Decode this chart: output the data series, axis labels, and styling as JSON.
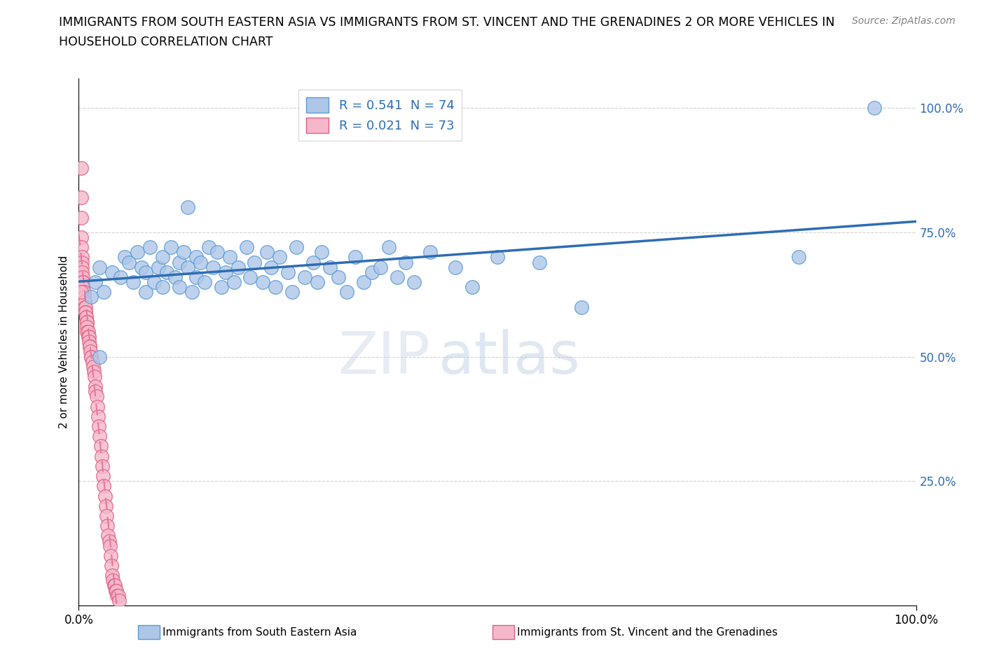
{
  "title_line1": "IMMIGRANTS FROM SOUTH EASTERN ASIA VS IMMIGRANTS FROM ST. VINCENT AND THE GRENADINES 2 OR MORE VEHICLES IN",
  "title_line2": "HOUSEHOLD CORRELATION CHART",
  "source": "Source: ZipAtlas.com",
  "ylabel": "2 or more Vehicles in Household",
  "blue_R": 0.541,
  "blue_N": 74,
  "pink_R": 0.021,
  "pink_N": 73,
  "blue_color": "#aec6e8",
  "blue_edge": "#5b9bd5",
  "pink_color": "#f5b8cb",
  "pink_edge": "#e06080",
  "trend_blue": "#2e6db4",
  "trend_pink": "#e87898",
  "legend_text_color": "#2e6db4",
  "tick_color": "#2e6db4",
  "blue_x": [
    1.5,
    2.0,
    2.5,
    3.0,
    4.0,
    5.0,
    5.5,
    6.0,
    6.5,
    7.0,
    7.5,
    8.0,
    8.0,
    8.5,
    9.0,
    9.5,
    10.0,
    10.0,
    10.5,
    11.0,
    11.5,
    12.0,
    12.0,
    12.5,
    13.0,
    13.5,
    14.0,
    14.0,
    14.5,
    15.0,
    15.5,
    16.0,
    16.5,
    17.0,
    17.5,
    18.0,
    18.5,
    19.0,
    20.0,
    20.5,
    21.0,
    22.0,
    22.5,
    23.0,
    23.5,
    24.0,
    25.0,
    25.5,
    26.0,
    27.0,
    28.0,
    28.5,
    29.0,
    30.0,
    31.0,
    32.0,
    33.0,
    34.0,
    35.0,
    36.0,
    37.0,
    38.0,
    39.0,
    40.0,
    42.0,
    45.0,
    47.0,
    50.0,
    55.0,
    60.0,
    13.0,
    86.0,
    95.0,
    2.5
  ],
  "blue_y": [
    62,
    65,
    68,
    63,
    67,
    66,
    70,
    69,
    65,
    71,
    68,
    63,
    67,
    72,
    65,
    68,
    70,
    64,
    67,
    72,
    66,
    69,
    64,
    71,
    68,
    63,
    70,
    66,
    69,
    65,
    72,
    68,
    71,
    64,
    67,
    70,
    65,
    68,
    72,
    66,
    69,
    65,
    71,
    68,
    64,
    70,
    67,
    63,
    72,
    66,
    69,
    65,
    71,
    68,
    66,
    63,
    70,
    65,
    67,
    68,
    72,
    66,
    69,
    65,
    71,
    68,
    64,
    70,
    69,
    60,
    80,
    70,
    100,
    50
  ],
  "pink_x": [
    0.3,
    0.3,
    0.3,
    0.3,
    0.3,
    0.4,
    0.4,
    0.4,
    0.4,
    0.5,
    0.5,
    0.5,
    0.5,
    0.5,
    0.6,
    0.6,
    0.6,
    0.7,
    0.7,
    0.7,
    0.8,
    0.8,
    0.8,
    0.9,
    0.9,
    1.0,
    1.0,
    1.0,
    1.0,
    1.1,
    1.1,
    1.2,
    1.2,
    1.3,
    1.3,
    1.4,
    1.5,
    1.5,
    1.6,
    1.7,
    1.8,
    1.9,
    2.0,
    2.0,
    2.1,
    2.2,
    2.3,
    2.4,
    2.5,
    2.6,
    2.7,
    2.8,
    2.9,
    3.0,
    3.1,
    3.2,
    3.3,
    3.4,
    3.5,
    3.6,
    3.7,
    3.8,
    3.9,
    4.0,
    4.1,
    4.2,
    4.3,
    4.4,
    4.5,
    4.6,
    4.7,
    4.8,
    0.3
  ],
  "pink_y": [
    88,
    82,
    78,
    74,
    72,
    70,
    69,
    68,
    67,
    66,
    65,
    65,
    64,
    63,
    63,
    62,
    62,
    61,
    61,
    60,
    60,
    59,
    59,
    58,
    58,
    57,
    57,
    56,
    55,
    55,
    54,
    54,
    53,
    52,
    52,
    51,
    50,
    50,
    49,
    48,
    47,
    46,
    44,
    43,
    42,
    40,
    38,
    36,
    34,
    32,
    30,
    28,
    26,
    24,
    22,
    20,
    18,
    16,
    14,
    13,
    12,
    10,
    8,
    6,
    5,
    4,
    4,
    3,
    3,
    2,
    2,
    1,
    63
  ]
}
